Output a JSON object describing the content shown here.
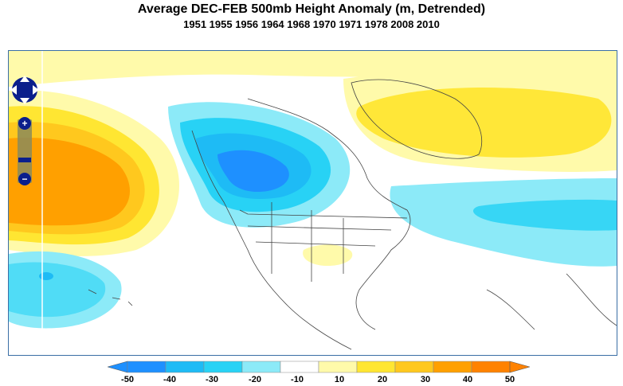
{
  "title": "Average DEC-FEB 500mb Height Anomaly (m, Detrended)",
  "subtitle": "1951 1955 1956 1964 1968 1970 1971 1978 2008 2010",
  "map": {
    "region": "North America and adjacent oceans",
    "anomalies": [
      {
        "name": "north-pacific-positive",
        "value": 40
      },
      {
        "name": "western-canada-negative",
        "value": -40
      },
      {
        "name": "greenland-positive",
        "value": 30
      },
      {
        "name": "central-pacific-negative",
        "value": -30
      },
      {
        "name": "north-atlantic-negative",
        "value": -20
      },
      {
        "name": "southern-us-positive",
        "value": 10
      }
    ]
  },
  "controls": {
    "pan_icon": "pan-arrows-icon",
    "zoom_in_label": "+",
    "zoom_out_label": "−"
  },
  "colorbar": {
    "ticks": [
      "-50",
      "-40",
      "-30",
      "-20",
      "-10",
      "10",
      "20",
      "30",
      "40",
      "50"
    ],
    "colors": [
      "#1e90ff",
      "#1ebbf5",
      "#28d2f5",
      "#8ceaf8",
      "#ffffff",
      "#fffaaa",
      "#ffe632",
      "#ffc81e",
      "#ffa000",
      "#ff8200"
    ]
  }
}
